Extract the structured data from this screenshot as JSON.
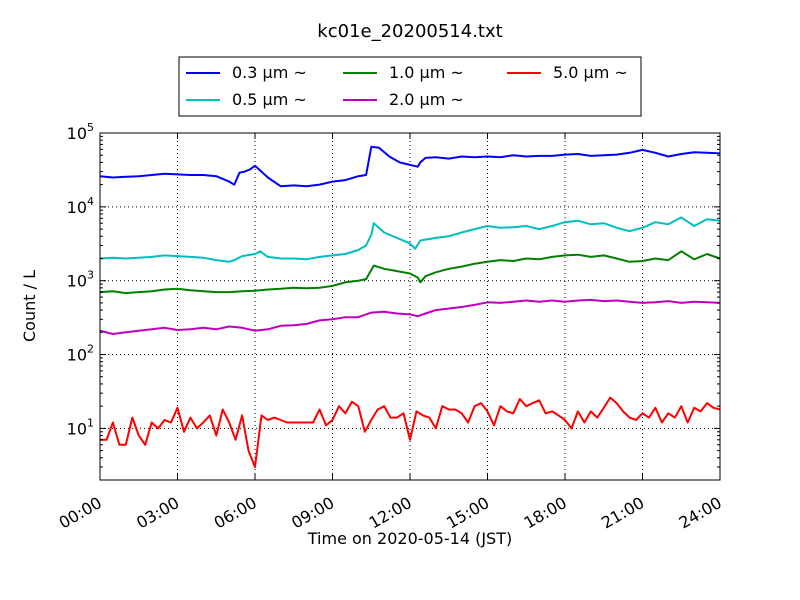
{
  "chart_data": {
    "type": "line",
    "title": "kc01e_20200514.txt",
    "xlabel": "Time on 2020-05-14 (JST)",
    "ylabel": "Count / L",
    "xlim": [
      "00:00",
      "24:00"
    ],
    "ylim": [
      2,
      100000
    ],
    "y_scale": "log",
    "grid": true,
    "legend_position": "top-center",
    "x_ticks": [
      "00:00",
      "03:00",
      "06:00",
      "09:00",
      "12:00",
      "15:00",
      "18:00",
      "21:00",
      "24:00"
    ],
    "y_ticks": [
      {
        "value": 10,
        "base": "10",
        "exp": "1"
      },
      {
        "value": 100,
        "base": "10",
        "exp": "2"
      },
      {
        "value": 1000,
        "base": "10",
        "exp": "3"
      },
      {
        "value": 10000,
        "base": "10",
        "exp": "4"
      },
      {
        "value": 100000,
        "base": "10",
        "exp": "5"
      }
    ],
    "series": [
      {
        "name": "0.3 μm ~",
        "color": "#0000ff",
        "legend_col": 0,
        "legend_row": 0,
        "points": [
          [
            0,
            26000
          ],
          [
            0.5,
            25000
          ],
          [
            1,
            25500
          ],
          [
            1.5,
            26000
          ],
          [
            2,
            27000
          ],
          [
            2.5,
            28000
          ],
          [
            3,
            27500
          ],
          [
            3.5,
            27000
          ],
          [
            4,
            27000
          ],
          [
            4.5,
            26000
          ],
          [
            5,
            22000
          ],
          [
            5.2,
            20000
          ],
          [
            5.4,
            29000
          ],
          [
            5.6,
            30000
          ],
          [
            5.8,
            32000
          ],
          [
            6,
            36000
          ],
          [
            6.5,
            25000
          ],
          [
            7,
            19000
          ],
          [
            7.5,
            19500
          ],
          [
            8,
            19000
          ],
          [
            8.5,
            20000
          ],
          [
            9,
            22000
          ],
          [
            9.5,
            23000
          ],
          [
            10,
            26000
          ],
          [
            10.3,
            27000
          ],
          [
            10.5,
            65000
          ],
          [
            10.8,
            63000
          ],
          [
            11.2,
            48000
          ],
          [
            11.6,
            40000
          ],
          [
            12,
            37000
          ],
          [
            12.3,
            35000
          ],
          [
            12.4,
            40000
          ],
          [
            12.6,
            46000
          ],
          [
            13,
            47000
          ],
          [
            13.5,
            45000
          ],
          [
            14,
            48000
          ],
          [
            14.5,
            47000
          ],
          [
            15,
            48000
          ],
          [
            15.5,
            47000
          ],
          [
            16,
            50000
          ],
          [
            16.5,
            48000
          ],
          [
            17,
            49000
          ],
          [
            17.5,
            49000
          ],
          [
            18,
            51000
          ],
          [
            18.5,
            52000
          ],
          [
            19,
            49000
          ],
          [
            19.5,
            50000
          ],
          [
            20,
            51000
          ],
          [
            20.5,
            54000
          ],
          [
            21,
            59000
          ],
          [
            21.5,
            54000
          ],
          [
            22,
            48000
          ],
          [
            22.5,
            52000
          ],
          [
            23,
            55000
          ],
          [
            23.5,
            54000
          ],
          [
            24,
            53000
          ]
        ]
      },
      {
        "name": "0.5 μm ~",
        "color": "#00bfbf",
        "legend_col": 0,
        "legend_row": 1,
        "points": [
          [
            0,
            2000
          ],
          [
            0.5,
            2050
          ],
          [
            1,
            2000
          ],
          [
            1.5,
            2050
          ],
          [
            2,
            2100
          ],
          [
            2.5,
            2200
          ],
          [
            3,
            2150
          ],
          [
            3.5,
            2100
          ],
          [
            4,
            2050
          ],
          [
            4.5,
            1900
          ],
          [
            5,
            1800
          ],
          [
            5.2,
            1900
          ],
          [
            5.5,
            2150
          ],
          [
            6,
            2300
          ],
          [
            6.2,
            2500
          ],
          [
            6.5,
            2100
          ],
          [
            7,
            2000
          ],
          [
            7.5,
            2000
          ],
          [
            8,
            1950
          ],
          [
            8.5,
            2100
          ],
          [
            9,
            2200
          ],
          [
            9.5,
            2300
          ],
          [
            10,
            2600
          ],
          [
            10.3,
            3000
          ],
          [
            10.5,
            4200
          ],
          [
            10.6,
            6000
          ],
          [
            11,
            4500
          ],
          [
            11.5,
            3800
          ],
          [
            12,
            3200
          ],
          [
            12.2,
            2700
          ],
          [
            12.4,
            3500
          ],
          [
            13,
            3800
          ],
          [
            13.5,
            4000
          ],
          [
            14,
            4500
          ],
          [
            14.5,
            5000
          ],
          [
            15,
            5500
          ],
          [
            15.5,
            5200
          ],
          [
            16,
            5300
          ],
          [
            16.5,
            5500
          ],
          [
            17,
            5000
          ],
          [
            17.5,
            5500
          ],
          [
            18,
            6200
          ],
          [
            18.5,
            6500
          ],
          [
            19,
            5800
          ],
          [
            19.5,
            6000
          ],
          [
            20,
            5200
          ],
          [
            20.5,
            4700
          ],
          [
            21,
            5200
          ],
          [
            21.5,
            6200
          ],
          [
            22,
            5800
          ],
          [
            22.5,
            7200
          ],
          [
            23,
            5500
          ],
          [
            23.5,
            6800
          ],
          [
            24,
            6500
          ]
        ]
      },
      {
        "name": "1.0 μm ~",
        "color": "#008000",
        "legend_col": 1,
        "legend_row": 0,
        "points": [
          [
            0,
            700
          ],
          [
            0.5,
            720
          ],
          [
            1,
            680
          ],
          [
            1.5,
            700
          ],
          [
            2,
            720
          ],
          [
            2.5,
            760
          ],
          [
            3,
            780
          ],
          [
            3.5,
            740
          ],
          [
            4,
            720
          ],
          [
            4.5,
            700
          ],
          [
            5,
            700
          ],
          [
            5.5,
            720
          ],
          [
            6,
            730
          ],
          [
            6.5,
            760
          ],
          [
            7,
            780
          ],
          [
            7.5,
            800
          ],
          [
            8,
            790
          ],
          [
            8.5,
            800
          ],
          [
            9,
            850
          ],
          [
            9.5,
            950
          ],
          [
            10,
            1000
          ],
          [
            10.3,
            1050
          ],
          [
            10.6,
            1600
          ],
          [
            11,
            1450
          ],
          [
            11.5,
            1350
          ],
          [
            12,
            1250
          ],
          [
            12.3,
            1100
          ],
          [
            12.4,
            950
          ],
          [
            12.6,
            1150
          ],
          [
            13,
            1300
          ],
          [
            13.5,
            1450
          ],
          [
            14,
            1550
          ],
          [
            14.5,
            1700
          ],
          [
            15,
            1800
          ],
          [
            15.5,
            1900
          ],
          [
            16,
            1850
          ],
          [
            16.5,
            2000
          ],
          [
            17,
            1950
          ],
          [
            17.5,
            2100
          ],
          [
            18,
            2200
          ],
          [
            18.5,
            2250
          ],
          [
            19,
            2100
          ],
          [
            19.5,
            2200
          ],
          [
            20,
            2000
          ],
          [
            20.5,
            1800
          ],
          [
            21,
            1850
          ],
          [
            21.5,
            2000
          ],
          [
            22,
            1900
          ],
          [
            22.5,
            2500
          ],
          [
            23,
            1950
          ],
          [
            23.5,
            2300
          ],
          [
            24,
            2000
          ]
        ]
      },
      {
        "name": "2.0 μm ~",
        "color": "#bf00bf",
        "legend_col": 1,
        "legend_row": 1,
        "points": [
          [
            0,
            210
          ],
          [
            0.5,
            190
          ],
          [
            1,
            200
          ],
          [
            1.5,
            210
          ],
          [
            2,
            220
          ],
          [
            2.5,
            230
          ],
          [
            3,
            215
          ],
          [
            3.5,
            220
          ],
          [
            4,
            230
          ],
          [
            4.5,
            220
          ],
          [
            5,
            240
          ],
          [
            5.5,
            230
          ],
          [
            6,
            210
          ],
          [
            6.5,
            220
          ],
          [
            7,
            245
          ],
          [
            7.5,
            250
          ],
          [
            8,
            260
          ],
          [
            8.5,
            290
          ],
          [
            9,
            300
          ],
          [
            9.5,
            320
          ],
          [
            10,
            320
          ],
          [
            10.5,
            370
          ],
          [
            11,
            380
          ],
          [
            11.5,
            360
          ],
          [
            12,
            350
          ],
          [
            12.3,
            330
          ],
          [
            12.6,
            360
          ],
          [
            13,
            400
          ],
          [
            13.5,
            420
          ],
          [
            14,
            440
          ],
          [
            14.5,
            470
          ],
          [
            15,
            510
          ],
          [
            15.5,
            500
          ],
          [
            16,
            520
          ],
          [
            16.5,
            540
          ],
          [
            17,
            520
          ],
          [
            17.5,
            540
          ],
          [
            18,
            520
          ],
          [
            18.5,
            540
          ],
          [
            19,
            550
          ],
          [
            19.5,
            530
          ],
          [
            20,
            540
          ],
          [
            20.5,
            520
          ],
          [
            21,
            500
          ],
          [
            21.5,
            510
          ],
          [
            22,
            530
          ],
          [
            22.5,
            500
          ],
          [
            23,
            520
          ],
          [
            23.5,
            510
          ],
          [
            24,
            500
          ]
        ]
      },
      {
        "name": "5.0 μm ~",
        "color": "#ff0000",
        "legend_col": 2,
        "legend_row": 0,
        "points": [
          [
            0,
            7
          ],
          [
            0.25,
            7
          ],
          [
            0.5,
            12
          ],
          [
            0.75,
            6
          ],
          [
            1,
            6
          ],
          [
            1.25,
            14
          ],
          [
            1.5,
            8
          ],
          [
            1.75,
            6
          ],
          [
            2,
            12
          ],
          [
            2.25,
            10
          ],
          [
            2.5,
            13
          ],
          [
            2.75,
            12
          ],
          [
            3,
            19
          ],
          [
            3.25,
            9
          ],
          [
            3.5,
            14
          ],
          [
            3.75,
            10
          ],
          [
            4,
            12
          ],
          [
            4.25,
            15
          ],
          [
            4.5,
            8
          ],
          [
            4.75,
            18
          ],
          [
            5,
            12
          ],
          [
            5.25,
            7
          ],
          [
            5.5,
            15
          ],
          [
            5.75,
            5
          ],
          [
            6,
            3
          ],
          [
            6.25,
            15
          ],
          [
            6.5,
            13
          ],
          [
            6.75,
            14
          ],
          [
            7,
            13
          ],
          [
            7.25,
            12
          ],
          [
            7.5,
            12
          ],
          [
            7.75,
            12
          ],
          [
            8,
            12
          ],
          [
            8.25,
            12
          ],
          [
            8.5,
            18
          ],
          [
            8.75,
            11
          ],
          [
            9,
            13
          ],
          [
            9.25,
            20
          ],
          [
            9.5,
            16
          ],
          [
            9.75,
            23
          ],
          [
            10,
            20
          ],
          [
            10.25,
            9
          ],
          [
            10.5,
            13
          ],
          [
            10.75,
            18
          ],
          [
            11,
            20
          ],
          [
            11.25,
            14
          ],
          [
            11.5,
            14
          ],
          [
            11.75,
            16
          ],
          [
            12,
            7
          ],
          [
            12.25,
            17
          ],
          [
            12.5,
            15
          ],
          [
            12.75,
            14
          ],
          [
            13,
            10
          ],
          [
            13.25,
            20
          ],
          [
            13.5,
            18
          ],
          [
            13.75,
            18
          ],
          [
            14,
            16
          ],
          [
            14.25,
            12
          ],
          [
            14.5,
            20
          ],
          [
            14.75,
            22
          ],
          [
            15,
            17
          ],
          [
            15.25,
            11
          ],
          [
            15.5,
            20
          ],
          [
            15.75,
            17
          ],
          [
            16,
            16
          ],
          [
            16.25,
            25
          ],
          [
            16.5,
            20
          ],
          [
            16.75,
            22
          ],
          [
            17,
            24
          ],
          [
            17.25,
            16
          ],
          [
            17.5,
            17
          ],
          [
            17.75,
            15
          ],
          [
            18,
            13
          ],
          [
            18.25,
            10
          ],
          [
            18.5,
            17
          ],
          [
            18.75,
            12
          ],
          [
            19,
            17
          ],
          [
            19.25,
            14
          ],
          [
            19.5,
            19
          ],
          [
            19.75,
            26
          ],
          [
            20,
            22
          ],
          [
            20.25,
            17
          ],
          [
            20.5,
            14
          ],
          [
            20.75,
            13
          ],
          [
            21,
            16
          ],
          [
            21.25,
            14
          ],
          [
            21.5,
            19
          ],
          [
            21.75,
            12
          ],
          [
            22,
            16
          ],
          [
            22.25,
            14
          ],
          [
            22.5,
            20
          ],
          [
            22.75,
            12
          ],
          [
            23,
            19
          ],
          [
            23.25,
            17
          ],
          [
            23.5,
            22
          ],
          [
            23.75,
            19
          ],
          [
            24,
            18
          ]
        ]
      }
    ]
  }
}
